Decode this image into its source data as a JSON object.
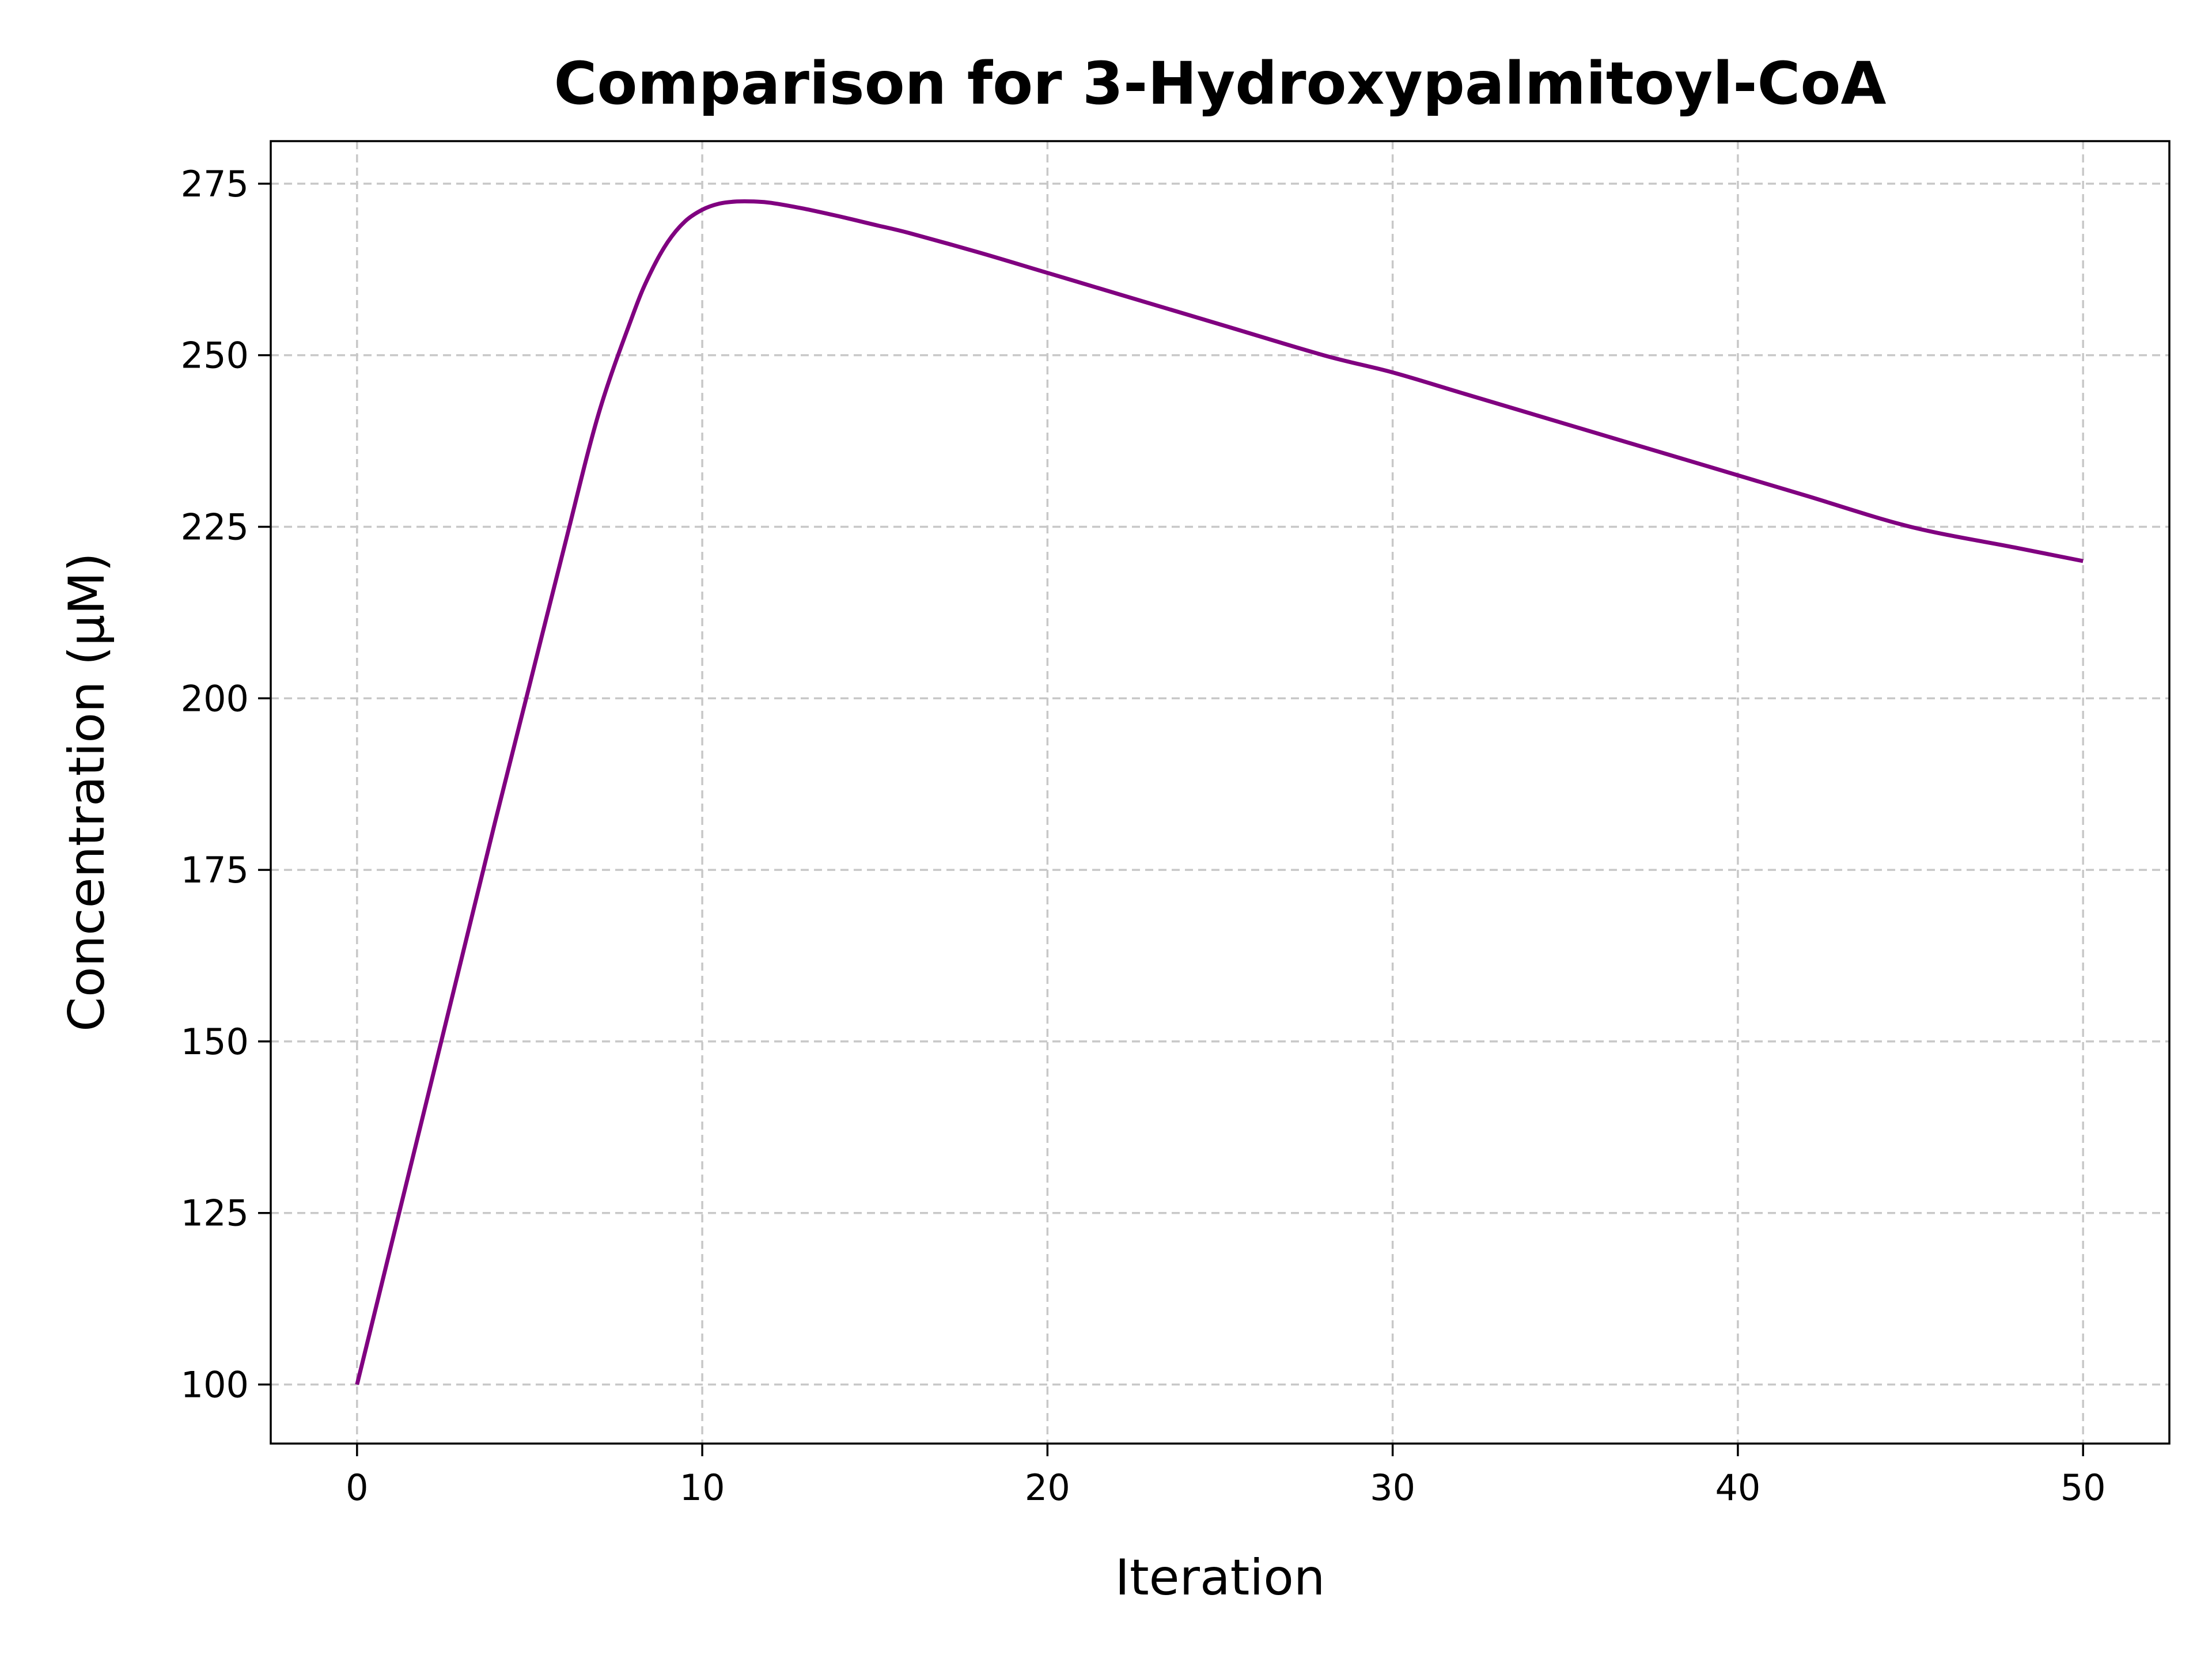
{
  "chart_data": {
    "type": "line",
    "title": "Comparison for 3-Hydroxypalmitoyl-CoA",
    "xlabel": "Iteration",
    "ylabel": "Concentration (μM)",
    "xlim": [
      -2.5,
      52.5
    ],
    "ylim": [
      91.4,
      281.2
    ],
    "x_ticks": [
      0,
      10,
      20,
      30,
      40,
      50
    ],
    "y_ticks": [
      100,
      125,
      150,
      175,
      200,
      225,
      250,
      275
    ],
    "grid": true,
    "legend": "none",
    "line_color": "#800080",
    "series": [
      {
        "x": [
          0,
          1,
          2,
          3,
          4,
          5,
          6,
          7,
          8,
          8.5,
          9,
          9.5,
          10,
          10.5,
          11,
          11.5,
          12,
          13,
          14,
          15,
          16,
          18,
          20,
          22,
          25,
          28,
          30,
          32,
          35,
          38,
          40,
          42,
          45,
          48,
          50
        ],
        "values": [
          100,
          120.5,
          141,
          161.5,
          182,
          202,
          222,
          241.5,
          256,
          262,
          266.5,
          269.5,
          271.2,
          272.1,
          272.4,
          272.4,
          272.2,
          271.3,
          270.2,
          269,
          267.8,
          265,
          262,
          259,
          254.5,
          250,
          247.5,
          244.5,
          240,
          235.5,
          232.5,
          229.5,
          225,
          222,
          220
        ]
      }
    ]
  }
}
